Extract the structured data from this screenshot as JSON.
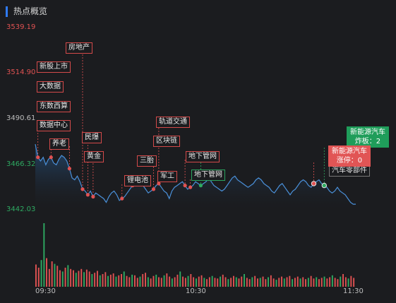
{
  "panel": {
    "title": "热点概览"
  },
  "chart_data": {
    "type": "line",
    "y_ticks": [
      {
        "label": "3539.19",
        "color": "#e05252"
      },
      {
        "label": "3514.90",
        "color": "#e05252"
      },
      {
        "label": "3490.61",
        "color": "#bdbdbd"
      },
      {
        "label": "3466.32",
        "color": "#2eaa62"
      },
      {
        "label": "3442.03",
        "color": "#2eaa62"
      }
    ],
    "x_ticks": [
      "09:30",
      "10:30",
      "11:30"
    ],
    "ylim": [
      3442.03,
      3539.19
    ],
    "price_series": [
      3477,
      3470,
      3468,
      3470,
      3466,
      3469,
      3470,
      3467,
      3466,
      3469,
      3471,
      3470,
      3468,
      3464,
      3459,
      3458,
      3460,
      3457,
      3453,
      3452,
      3450,
      3452,
      3449,
      3451,
      3450,
      3449,
      3448,
      3446,
      3449,
      3451,
      3452,
      3450,
      3447,
      3448,
      3449,
      3451,
      3453,
      3455,
      3456,
      3457,
      3455,
      3455,
      3453,
      3451,
      3452,
      3453,
      3455,
      3456,
      3454,
      3452,
      3451,
      3448,
      3452,
      3454,
      3455,
      3456,
      3457,
      3455,
      3453,
      3454,
      3455,
      3457,
      3456,
      3455,
      3456,
      3457,
      3459,
      3457,
      3455,
      3454,
      3453,
      3452,
      3453,
      3455,
      3457,
      3459,
      3460,
      3458,
      3457,
      3456,
      3455,
      3454,
      3455,
      3456,
      3458,
      3459,
      3458,
      3456,
      3455,
      3454,
      3452,
      3451,
      3453,
      3455,
      3456,
      3454,
      3452,
      3450,
      3452,
      3453,
      3455,
      3457,
      3458,
      3457,
      3455,
      3454,
      3456,
      3457,
      3458,
      3456,
      3455,
      3454,
      3452,
      3451,
      3452,
      3454,
      3452,
      3451,
      3450,
      3448,
      3446,
      3445,
      3445
    ],
    "volume_bars": [
      {
        "v": 35,
        "c": "red"
      },
      {
        "v": 30,
        "c": "red"
      },
      {
        "v": 42,
        "c": "green"
      },
      {
        "v": 100,
        "c": "green"
      },
      {
        "v": 45,
        "c": "red"
      },
      {
        "v": 28,
        "c": "red"
      },
      {
        "v": 40,
        "c": "red"
      },
      {
        "v": 36,
        "c": "green"
      },
      {
        "v": 33,
        "c": "red"
      },
      {
        "v": 26,
        "c": "red"
      },
      {
        "v": 24,
        "c": "green"
      },
      {
        "v": 30,
        "c": "red"
      },
      {
        "v": 34,
        "c": "green"
      },
      {
        "v": 28,
        "c": "red"
      },
      {
        "v": 26,
        "c": "red"
      },
      {
        "v": 22,
        "c": "green"
      },
      {
        "v": 25,
        "c": "red"
      },
      {
        "v": 28,
        "c": "red"
      },
      {
        "v": 23,
        "c": "green"
      },
      {
        "v": 27,
        "c": "red"
      },
      {
        "v": 24,
        "c": "red"
      },
      {
        "v": 20,
        "c": "green"
      },
      {
        "v": 22,
        "c": "red"
      },
      {
        "v": 25,
        "c": "red"
      },
      {
        "v": 18,
        "c": "green"
      },
      {
        "v": 20,
        "c": "red"
      },
      {
        "v": 23,
        "c": "red"
      },
      {
        "v": 17,
        "c": "green"
      },
      {
        "v": 19,
        "c": "red"
      },
      {
        "v": 21,
        "c": "red"
      },
      {
        "v": 16,
        "c": "green"
      },
      {
        "v": 18,
        "c": "red"
      },
      {
        "v": 20,
        "c": "red"
      },
      {
        "v": 24,
        "c": "green"
      },
      {
        "v": 17,
        "c": "red"
      },
      {
        "v": 15,
        "c": "red"
      },
      {
        "v": 19,
        "c": "green"
      },
      {
        "v": 18,
        "c": "red"
      },
      {
        "v": 14,
        "c": "red"
      },
      {
        "v": 16,
        "c": "green"
      },
      {
        "v": 20,
        "c": "red"
      },
      {
        "v": 22,
        "c": "red"
      },
      {
        "v": 15,
        "c": "green"
      },
      {
        "v": 13,
        "c": "red"
      },
      {
        "v": 17,
        "c": "red"
      },
      {
        "v": 19,
        "c": "green"
      },
      {
        "v": 15,
        "c": "red"
      },
      {
        "v": 14,
        "c": "red"
      },
      {
        "v": 18,
        "c": "green"
      },
      {
        "v": 21,
        "c": "red"
      },
      {
        "v": 16,
        "c": "red"
      },
      {
        "v": 13,
        "c": "green"
      },
      {
        "v": 15,
        "c": "red"
      },
      {
        "v": 19,
        "c": "red"
      },
      {
        "v": 24,
        "c": "green"
      },
      {
        "v": 16,
        "c": "red"
      },
      {
        "v": 14,
        "c": "red"
      },
      {
        "v": 17,
        "c": "green"
      },
      {
        "v": 20,
        "c": "red"
      },
      {
        "v": 15,
        "c": "red"
      },
      {
        "v": 13,
        "c": "green"
      },
      {
        "v": 16,
        "c": "red"
      },
      {
        "v": 18,
        "c": "red"
      },
      {
        "v": 14,
        "c": "green"
      },
      {
        "v": 12,
        "c": "red"
      },
      {
        "v": 15,
        "c": "red"
      },
      {
        "v": 17,
        "c": "green"
      },
      {
        "v": 14,
        "c": "red"
      },
      {
        "v": 13,
        "c": "red"
      },
      {
        "v": 16,
        "c": "green"
      },
      {
        "v": 19,
        "c": "red"
      },
      {
        "v": 15,
        "c": "red"
      },
      {
        "v": 12,
        "c": "green"
      },
      {
        "v": 14,
        "c": "red"
      },
      {
        "v": 17,
        "c": "red"
      },
      {
        "v": 15,
        "c": "green"
      },
      {
        "v": 13,
        "c": "red"
      },
      {
        "v": 16,
        "c": "red"
      },
      {
        "v": 20,
        "c": "green"
      },
      {
        "v": 14,
        "c": "red"
      },
      {
        "v": 12,
        "c": "red"
      },
      {
        "v": 15,
        "c": "green"
      },
      {
        "v": 17,
        "c": "red"
      },
      {
        "v": 13,
        "c": "red"
      },
      {
        "v": 14,
        "c": "green"
      },
      {
        "v": 16,
        "c": "red"
      },
      {
        "v": 12,
        "c": "red"
      },
      {
        "v": 15,
        "c": "green"
      },
      {
        "v": 18,
        "c": "red"
      },
      {
        "v": 13,
        "c": "red"
      },
      {
        "v": 11,
        "c": "green"
      },
      {
        "v": 14,
        "c": "red"
      },
      {
        "v": 16,
        "c": "red"
      },
      {
        "v": 13,
        "c": "green"
      },
      {
        "v": 15,
        "c": "red"
      },
      {
        "v": 17,
        "c": "red"
      },
      {
        "v": 12,
        "c": "green"
      },
      {
        "v": 14,
        "c": "red"
      },
      {
        "v": 16,
        "c": "red"
      },
      {
        "v": 13,
        "c": "green"
      },
      {
        "v": 15,
        "c": "red"
      },
      {
        "v": 12,
        "c": "red"
      },
      {
        "v": 14,
        "c": "green"
      },
      {
        "v": 17,
        "c": "red"
      },
      {
        "v": 13,
        "c": "red"
      },
      {
        "v": 15,
        "c": "green"
      },
      {
        "v": 12,
        "c": "red"
      },
      {
        "v": 14,
        "c": "red"
      },
      {
        "v": 16,
        "c": "green"
      },
      {
        "v": 13,
        "c": "red"
      },
      {
        "v": 15,
        "c": "red"
      },
      {
        "v": 18,
        "c": "green"
      },
      {
        "v": 14,
        "c": "red"
      },
      {
        "v": 12,
        "c": "red"
      },
      {
        "v": 16,
        "c": "green"
      },
      {
        "v": 20,
        "c": "red"
      },
      {
        "v": 15,
        "c": "red"
      },
      {
        "v": 13,
        "c": "green"
      },
      {
        "v": 17,
        "c": "red"
      },
      {
        "v": 14,
        "c": "red"
      }
    ]
  },
  "hot_tags": [
    {
      "text": "房地产",
      "type": "red"
    },
    {
      "text": "新股上市",
      "type": "red"
    },
    {
      "text": "大数据",
      "type": "red"
    },
    {
      "text": "东数西算",
      "type": "red"
    },
    {
      "text": "数据中心",
      "type": "red"
    },
    {
      "text": "养老",
      "type": "red"
    },
    {
      "text": "民爆",
      "type": "red"
    },
    {
      "text": "黄金",
      "type": "red"
    },
    {
      "text": "三胎",
      "type": "red"
    },
    {
      "text": "锂电池",
      "type": "red"
    },
    {
      "text": "轨道交通",
      "type": "red"
    },
    {
      "text": "区块链",
      "type": "red"
    },
    {
      "text": "军工",
      "type": "red"
    },
    {
      "text": "地下管网",
      "type": "red"
    },
    {
      "text": "地下管网",
      "type": "green"
    },
    {
      "text": "汽车零部件",
      "type": "dark"
    }
  ],
  "callouts": [
    {
      "line1": "新能源汽车",
      "line2": "炸板：2",
      "type": "green"
    },
    {
      "line1": "新能源汽车",
      "line2": "涨停：0",
      "type": "red"
    }
  ],
  "colors": {
    "red": "#e05252",
    "green": "#2eaa62",
    "line": "#4a90d9",
    "accent": "#2f7bf6"
  }
}
